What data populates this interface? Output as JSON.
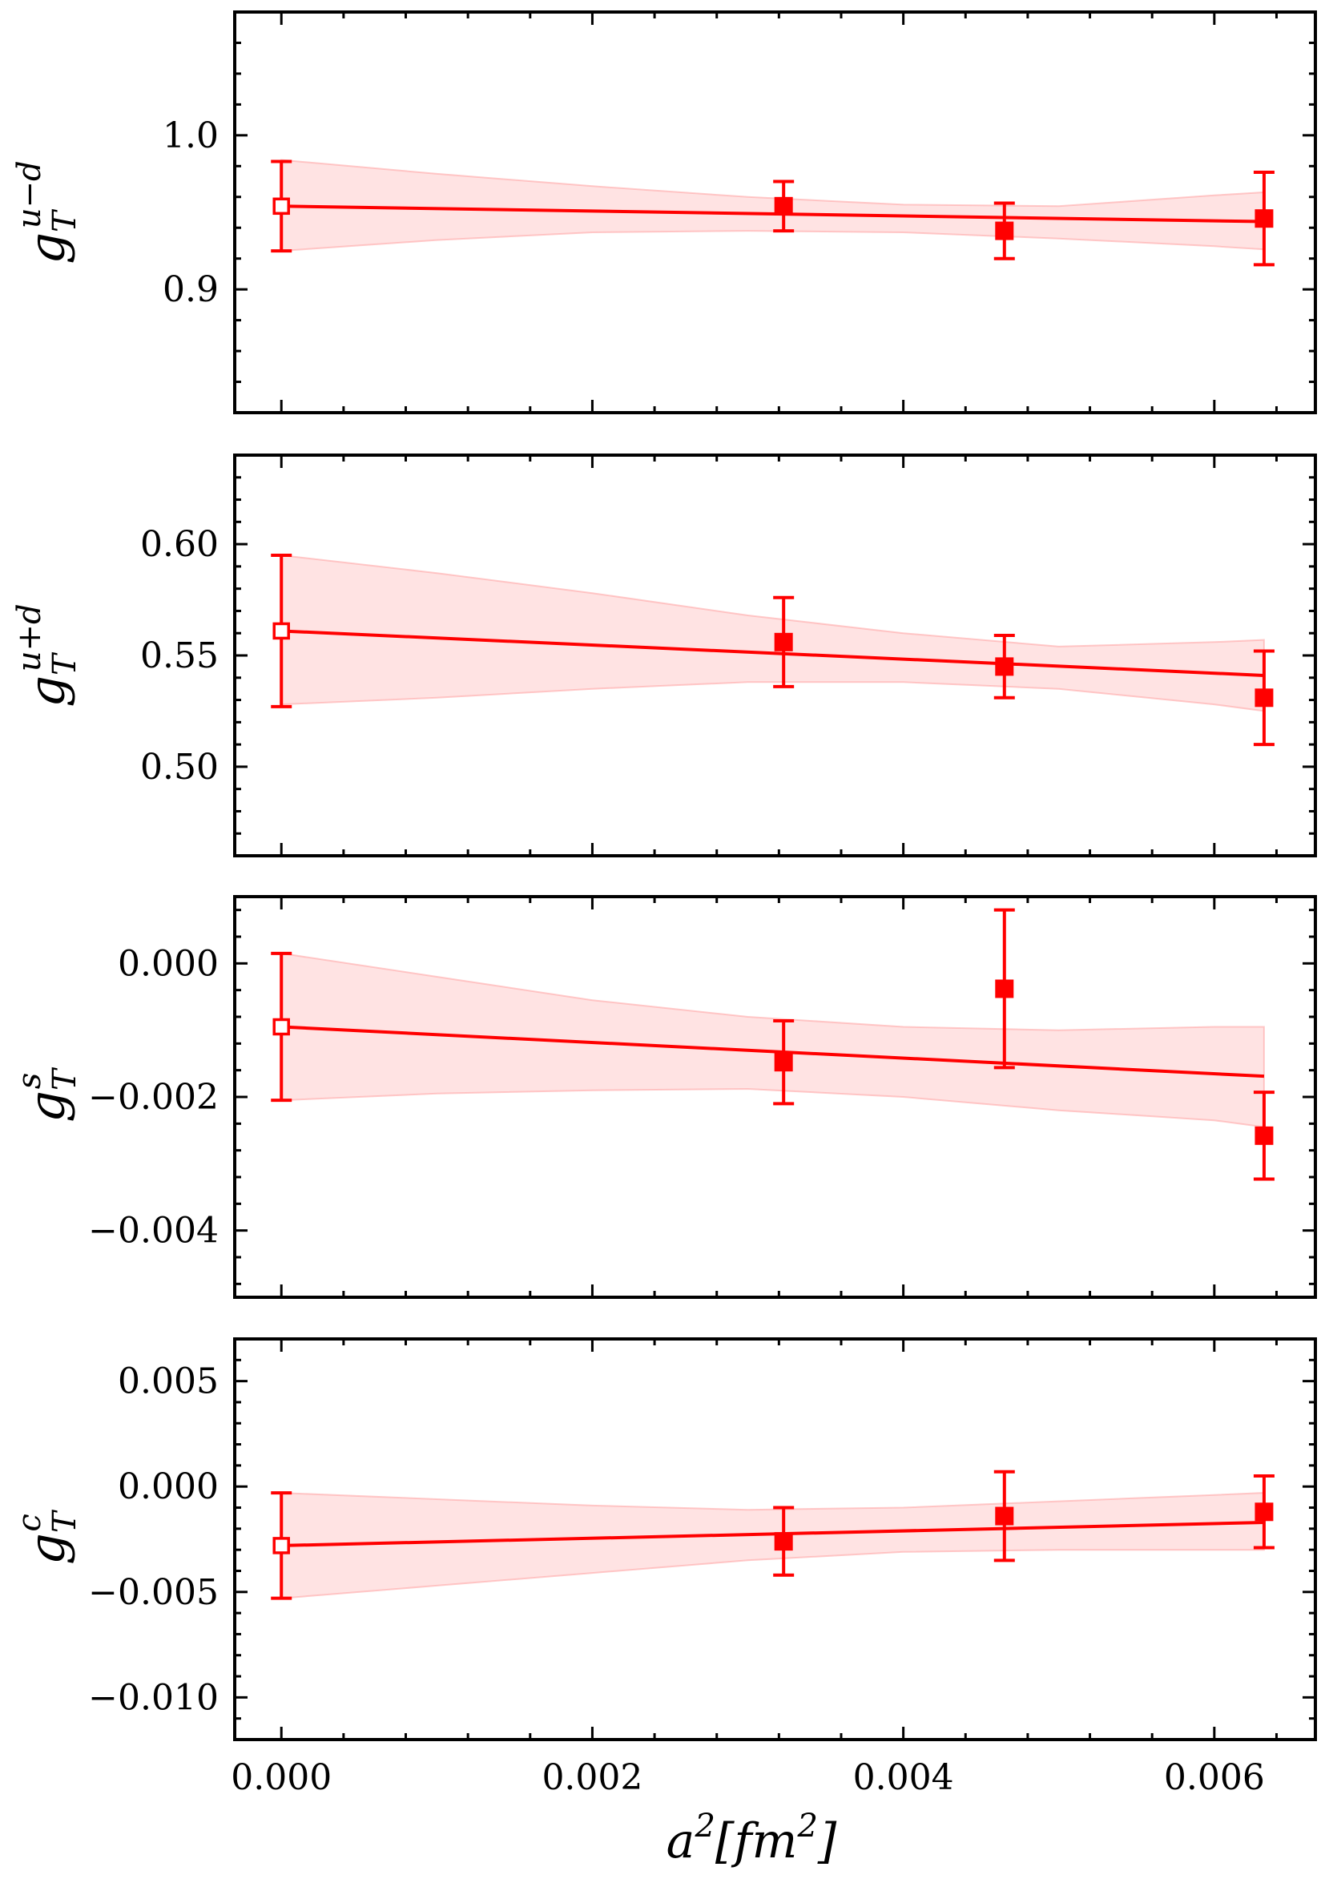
{
  "colors": {
    "series": "#ff0000",
    "band": "#ff9999",
    "axis": "#000000",
    "background": "#ffffff"
  },
  "chart_data": {
    "x_axis": {
      "label_base": "a",
      "label_sup": "2",
      "label_open": "[",
      "label_unit": "fm",
      "label_unit_sup": "2",
      "label_close": "]",
      "xlim": [
        -0.0003,
        0.00665
      ],
      "ticks": [
        0.0,
        0.002,
        0.004,
        0.006
      ],
      "tick_labels": [
        "0.000",
        "0.002",
        "0.004",
        "0.006"
      ]
    },
    "panels": [
      {
        "type": "scatter",
        "ylabel": "g",
        "ylabel_sub": "T",
        "ylabel_sup": "u−d",
        "ylim": [
          0.82,
          1.08
        ],
        "yticks": [
          0.9,
          1.0
        ],
        "ytick_labels": [
          "0.9",
          "1.0"
        ],
        "points": [
          {
            "x": 0.0,
            "y": 0.954,
            "yerr": 0.029,
            "open": true
          },
          {
            "x": 0.00323,
            "y": 0.954,
            "yerr": 0.016,
            "open": false
          },
          {
            "x": 0.00465,
            "y": 0.938,
            "yerr": 0.018,
            "open": false
          },
          {
            "x": 0.00632,
            "y": 0.946,
            "yerr": 0.03,
            "open": false
          }
        ],
        "fit": {
          "x": [
            0.0,
            0.00632
          ],
          "y": [
            0.954,
            0.944
          ]
        },
        "band": {
          "x": [
            0.0,
            0.001,
            0.002,
            0.003,
            0.004,
            0.005,
            0.006,
            0.00632
          ],
          "upper": [
            0.984,
            0.975,
            0.967,
            0.96,
            0.955,
            0.954,
            0.961,
            0.963
          ],
          "lower": [
            0.925,
            0.932,
            0.937,
            0.938,
            0.937,
            0.933,
            0.928,
            0.926
          ]
        }
      },
      {
        "type": "scatter",
        "ylabel": "g",
        "ylabel_sub": "T",
        "ylabel_sup": "u+d",
        "ylim": [
          0.46,
          0.64
        ],
        "yticks": [
          0.5,
          0.55,
          0.6
        ],
        "ytick_labels": [
          "0.50",
          "0.55",
          "0.60"
        ],
        "points": [
          {
            "x": 0.0,
            "y": 0.561,
            "yerr": 0.034,
            "open": true
          },
          {
            "x": 0.00323,
            "y": 0.556,
            "yerr": 0.02,
            "open": false
          },
          {
            "x": 0.00465,
            "y": 0.545,
            "yerr": 0.014,
            "open": false
          },
          {
            "x": 0.00632,
            "y": 0.531,
            "yerr": 0.021,
            "open": false
          }
        ],
        "fit": {
          "x": [
            0.0,
            0.00632
          ],
          "y": [
            0.561,
            0.541
          ]
        },
        "band": {
          "x": [
            0.0,
            0.001,
            0.002,
            0.003,
            0.004,
            0.005,
            0.006,
            0.00632
          ],
          "upper": [
            0.595,
            0.587,
            0.578,
            0.568,
            0.56,
            0.554,
            0.556,
            0.557
          ],
          "lower": [
            0.528,
            0.531,
            0.535,
            0.538,
            0.538,
            0.535,
            0.528,
            0.525
          ]
        }
      },
      {
        "type": "scatter",
        "ylabel": "g",
        "ylabel_sub": "T",
        "ylabel_sup": "s",
        "ylim": [
          -0.005,
          0.001
        ],
        "yticks": [
          -0.004,
          -0.002,
          0.0
        ],
        "ytick_labels": [
          "−0.004",
          "−0.002",
          "0.000"
        ],
        "points": [
          {
            "x": 0.0,
            "y": -0.00095,
            "yerr": 0.0011,
            "open": true
          },
          {
            "x": 0.00323,
            "y": -0.00148,
            "yerr": 0.00062,
            "open": false
          },
          {
            "x": 0.00465,
            "y": -0.00038,
            "yerr": 0.00118,
            "open": false
          },
          {
            "x": 0.00632,
            "y": -0.00258,
            "yerr": 0.00065,
            "open": false
          }
        ],
        "fit": {
          "x": [
            0.0,
            0.00632
          ],
          "y": [
            -0.00095,
            -0.00169
          ]
        },
        "band": {
          "x": [
            0.0,
            0.001,
            0.002,
            0.003,
            0.004,
            0.005,
            0.006,
            0.00632
          ],
          "upper": [
            0.00015,
            -0.0002,
            -0.00055,
            -0.0008,
            -0.00095,
            -0.001,
            -0.00095,
            -0.00095
          ],
          "lower": [
            -0.00205,
            -0.00195,
            -0.0019,
            -0.00188,
            -0.002,
            -0.0022,
            -0.00235,
            -0.00245
          ]
        }
      },
      {
        "type": "scatter",
        "ylabel": "g",
        "ylabel_sub": "T",
        "ylabel_sup": "c",
        "ylim": [
          -0.012,
          0.007
        ],
        "yticks": [
          -0.01,
          -0.005,
          0.0,
          0.005
        ],
        "ytick_labels": [
          "−0.010",
          "−0.005",
          "0.000",
          "0.005"
        ],
        "points": [
          {
            "x": 0.0,
            "y": -0.0028,
            "yerr": 0.0025,
            "open": true
          },
          {
            "x": 0.00323,
            "y": -0.0026,
            "yerr": 0.0016,
            "open": false
          },
          {
            "x": 0.00465,
            "y": -0.0014,
            "yerr": 0.0021,
            "open": false
          },
          {
            "x": 0.00632,
            "y": -0.0012,
            "yerr": 0.0017,
            "open": false
          }
        ],
        "fit": {
          "x": [
            0.0,
            0.00632
          ],
          "y": [
            -0.0028,
            -0.0017
          ]
        },
        "band": {
          "x": [
            0.0,
            0.001,
            0.002,
            0.003,
            0.004,
            0.005,
            0.006,
            0.00632
          ],
          "upper": [
            -0.0003,
            -0.0006,
            -0.0009,
            -0.0011,
            -0.001,
            -0.0007,
            -0.0004,
            -0.0003
          ],
          "lower": [
            -0.0053,
            -0.0047,
            -0.0041,
            -0.0035,
            -0.0031,
            -0.003,
            -0.003,
            -0.003
          ]
        }
      }
    ]
  }
}
